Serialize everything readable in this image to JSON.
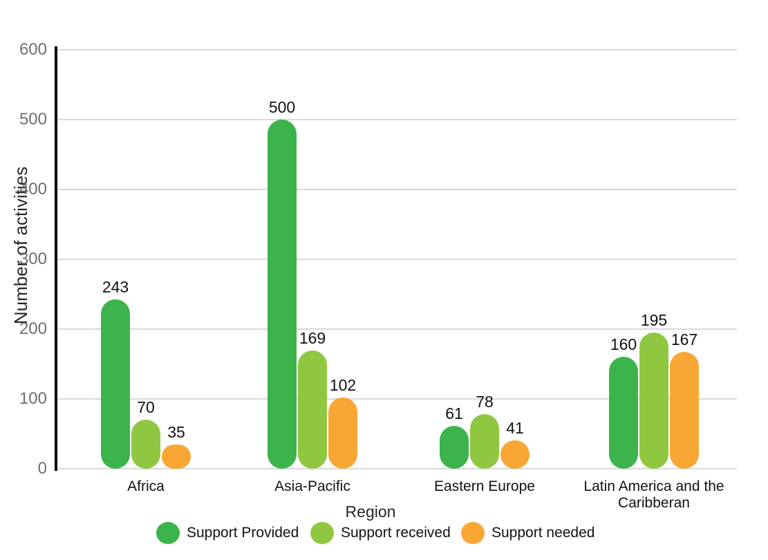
{
  "chart_data": {
    "type": "bar",
    "title": "",
    "xlabel": "Region",
    "ylabel": "Number of activities",
    "ylim": [
      0,
      600
    ],
    "yticks": [
      0,
      100,
      200,
      300,
      400,
      500,
      600
    ],
    "grid": true,
    "legend_position": "bottom",
    "data_labels": true,
    "categories": [
      "Africa",
      "Asia-Pacific",
      "Eastern Europe",
      "Latin America and the Caribberan"
    ],
    "series": [
      {
        "name": "Support Provided",
        "color": "#3cb44b",
        "values": [
          243,
          500,
          61,
          160
        ]
      },
      {
        "name": "Support received",
        "color": "#90c740",
        "values": [
          70,
          169,
          78,
          195
        ]
      },
      {
        "name": "Support needed",
        "color": "#f8a735",
        "values": [
          35,
          102,
          41,
          167
        ]
      }
    ]
  },
  "colors": {
    "axis_line": "#000000",
    "gridline": "#dadada",
    "tick_label": "#6f6f6f",
    "text": "#111111",
    "background": "#ffffff"
  }
}
